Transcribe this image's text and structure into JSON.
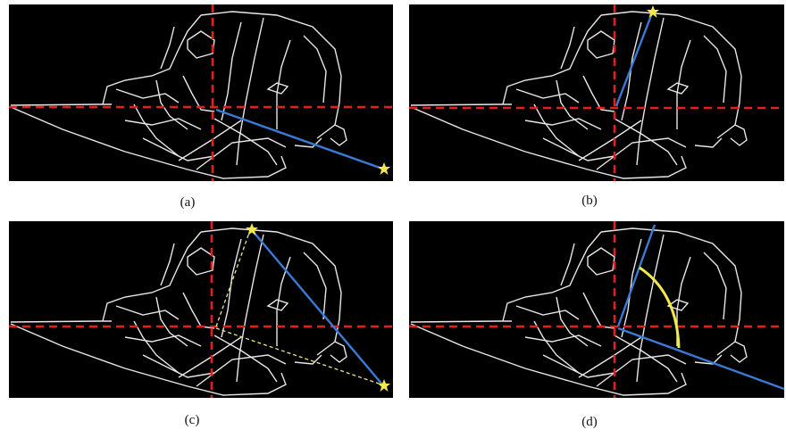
{
  "figure": {
    "panels": [
      {
        "id": "a",
        "caption": "(a)",
        "overlay": "bisector-to-tail-star"
      },
      {
        "id": "b",
        "caption": "(b)",
        "overlay": "bisector-to-top-star"
      },
      {
        "id": "c",
        "caption": "(c)",
        "overlay": "connecting-line-between-stars"
      },
      {
        "id": "d",
        "caption": "(d)",
        "overlay": "angle-arc-between-lines"
      }
    ],
    "colors": {
      "background": "#000000",
      "skeleton": "#e8e8e8",
      "axis": "#e32020",
      "line": "#3a7bd5",
      "marker": "#f5e94a",
      "guide": "#f0e68c"
    },
    "icons": {
      "marker": "star-icon"
    }
  }
}
